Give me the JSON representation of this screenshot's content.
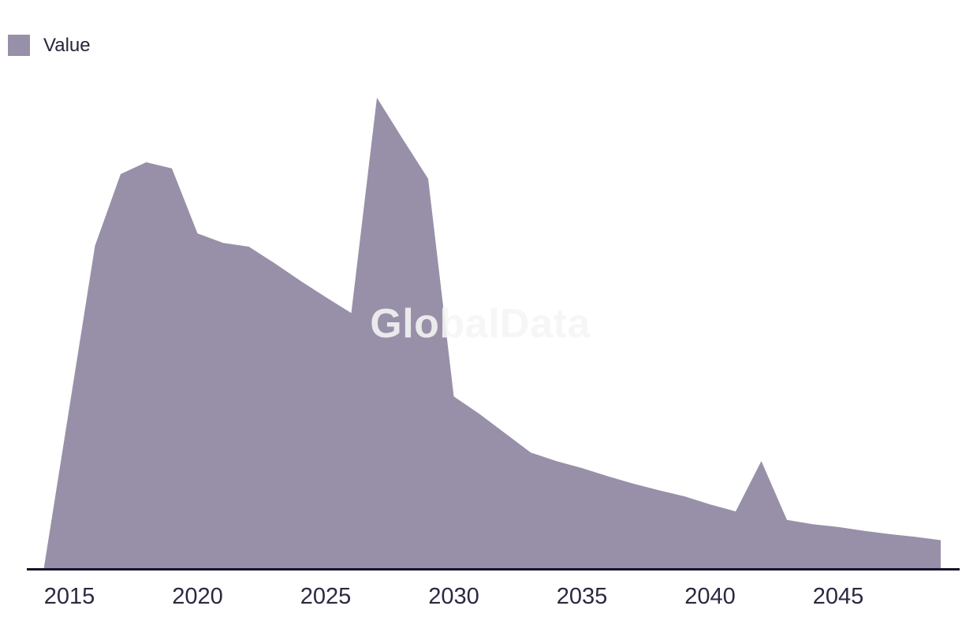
{
  "legend": {
    "label": "Value",
    "swatch_color": "#9890a8"
  },
  "watermark": {
    "text": "GlobalData"
  },
  "colors": {
    "area_fill": "#9890a8",
    "axis_line": "#16152b",
    "tick_text": "#2a2940",
    "legend_text": "#26253b"
  },
  "chart_data": {
    "type": "area",
    "title": "",
    "xlabel": "",
    "ylabel": "",
    "x": [
      2014,
      2015,
      2016,
      2017,
      2018,
      2019,
      2020,
      2021,
      2022,
      2023,
      2024,
      2025,
      2026,
      2027,
      2028,
      2029,
      2030,
      2031,
      2032,
      2033,
      2034,
      2035,
      2036,
      2037,
      2038,
      2039,
      2040,
      2041,
      2042,
      2043,
      2044,
      2045,
      2046,
      2047,
      2048,
      2049
    ],
    "series": [
      {
        "name": "Value",
        "values": [
          0,
          34.3,
          68.6,
          83.8,
          86.3,
          85.0,
          71.2,
          69.2,
          68.4,
          64.9,
          61.2,
          57.7,
          54.3,
          100,
          91.3,
          82.8,
          36.6,
          32.9,
          28.8,
          24.7,
          22.9,
          21.4,
          19.7,
          18.1,
          16.7,
          15.4,
          13.7,
          12.2,
          22.9,
          10.4,
          9.5,
          8.9,
          8.1,
          7.4,
          6.8,
          6.1
        ]
      }
    ],
    "x_tick_labels": [
      "2015",
      "2020",
      "2025",
      "2030",
      "2035",
      "2040",
      "2045"
    ],
    "ylim": [
      0,
      110
    ],
    "y_axis_visible": false,
    "x_axis_visible": true,
    "grid": false,
    "legend_position": "top-left",
    "note": "No y-axis shown in source; values normalized so the 2027 peak equals 100."
  }
}
